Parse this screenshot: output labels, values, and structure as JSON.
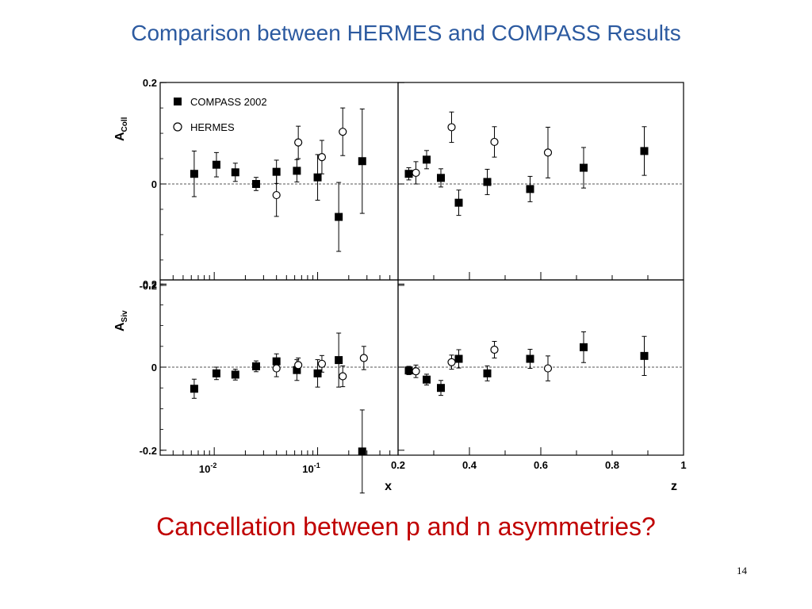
{
  "slide": {
    "title": "Comparison between HERMES and COMPASS Results",
    "subtitle": "Cancellation between p and n asymmetries?",
    "page_number": "14"
  },
  "colors": {
    "title": "#2c5aa0",
    "subtitle": "#c00000",
    "axis": "#000000",
    "zero_line": "#555555"
  },
  "chart_data": [
    {
      "panel": "top-left",
      "type": "scatter",
      "xscale": "log",
      "xlim": [
        0.003,
        0.6
      ],
      "ylim": [
        -0.2,
        0.2
      ],
      "ylabel": "A",
      "ylabel_sub": "Coll",
      "yticks": [
        "0.2",
        "0",
        "-0.2"
      ],
      "legend": [
        "COMPASS 2002",
        "HERMES"
      ],
      "series": [
        {
          "name": "COMPASS 2002",
          "marker": "square-filled",
          "points": [
            {
              "x": 0.0064,
              "y": 0.02,
              "err": 0.045
            },
            {
              "x": 0.0105,
              "y": 0.038,
              "err": 0.024
            },
            {
              "x": 0.016,
              "y": 0.023,
              "err": 0.018
            },
            {
              "x": 0.0254,
              "y": 0.0,
              "err": 0.013
            },
            {
              "x": 0.04,
              "y": 0.024,
              "err": 0.023
            },
            {
              "x": 0.063,
              "y": 0.026,
              "err": 0.022
            },
            {
              "x": 0.1,
              "y": 0.013,
              "err": 0.045
            },
            {
              "x": 0.16,
              "y": -0.065,
              "err": 0.068
            },
            {
              "x": 0.27,
              "y": 0.045,
              "err": 0.103
            }
          ]
        },
        {
          "name": "HERMES",
          "marker": "circle-open",
          "points": [
            {
              "x": 0.04,
              "y": -0.022,
              "err": 0.042
            },
            {
              "x": 0.065,
              "y": 0.082,
              "err": 0.032
            },
            {
              "x": 0.11,
              "y": 0.053,
              "err": 0.033
            },
            {
              "x": 0.175,
              "y": 0.103,
              "err": 0.047
            }
          ]
        }
      ]
    },
    {
      "panel": "top-right",
      "type": "scatter",
      "xlim": [
        0.2,
        1.0
      ],
      "ylim": [
        -0.2,
        0.2
      ],
      "series": [
        {
          "name": "COMPASS 2002",
          "marker": "square-filled",
          "points": [
            {
              "x": 0.23,
              "y": 0.02,
              "err": 0.012
            },
            {
              "x": 0.28,
              "y": 0.048,
              "err": 0.018
            },
            {
              "x": 0.32,
              "y": 0.012,
              "err": 0.018
            },
            {
              "x": 0.37,
              "y": -0.037,
              "err": 0.025
            },
            {
              "x": 0.45,
              "y": 0.004,
              "err": 0.025
            },
            {
              "x": 0.57,
              "y": -0.01,
              "err": 0.025
            },
            {
              "x": 0.72,
              "y": 0.032,
              "err": 0.04
            },
            {
              "x": 0.89,
              "y": 0.065,
              "err": 0.048
            }
          ]
        },
        {
          "name": "HERMES",
          "marker": "circle-open",
          "points": [
            {
              "x": 0.25,
              "y": 0.022,
              "err": 0.022
            },
            {
              "x": 0.35,
              "y": 0.112,
              "err": 0.03
            },
            {
              "x": 0.47,
              "y": 0.083,
              "err": 0.03
            },
            {
              "x": 0.62,
              "y": 0.062,
              "err": 0.05
            }
          ]
        }
      ]
    },
    {
      "panel": "bottom-left",
      "type": "scatter",
      "xscale": "log",
      "xlim": [
        0.003,
        0.6
      ],
      "ylim": [
        -0.21,
        0.21
      ],
      "ylabel": "A",
      "ylabel_sub": "Siv",
      "xlabel": "x",
      "yticks": [
        "0.2",
        "0",
        "-0.2"
      ],
      "xticks": [
        {
          "base": "10",
          "exp": "-2",
          "value": 0.01
        },
        {
          "base": "10",
          "exp": "-1",
          "value": 0.1
        }
      ],
      "series": [
        {
          "name": "COMPASS 2002",
          "marker": "square-filled",
          "points": [
            {
              "x": 0.0064,
              "y": -0.052,
              "err": 0.023
            },
            {
              "x": 0.0105,
              "y": -0.015,
              "err": 0.015
            },
            {
              "x": 0.016,
              "y": -0.018,
              "err": 0.013
            },
            {
              "x": 0.0254,
              "y": 0.002,
              "err": 0.013
            },
            {
              "x": 0.04,
              "y": 0.014,
              "err": 0.018
            },
            {
              "x": 0.063,
              "y": -0.007,
              "err": 0.025
            },
            {
              "x": 0.1,
              "y": -0.015,
              "err": 0.033
            },
            {
              "x": 0.16,
              "y": 0.017,
              "err": 0.065
            },
            {
              "x": 0.27,
              "y": -0.203,
              "err": 0.1
            }
          ]
        },
        {
          "name": "HERMES",
          "marker": "circle-open",
          "points": [
            {
              "x": 0.04,
              "y": -0.003,
              "err": 0.02
            },
            {
              "x": 0.065,
              "y": 0.005,
              "err": 0.017
            },
            {
              "x": 0.11,
              "y": 0.008,
              "err": 0.02
            },
            {
              "x": 0.175,
              "y": -0.022,
              "err": 0.025
            },
            {
              "x": 0.28,
              "y": 0.022,
              "err": 0.028
            }
          ]
        }
      ]
    },
    {
      "panel": "bottom-right",
      "type": "scatter",
      "xlim": [
        0.2,
        1.0
      ],
      "ylim": [
        -0.21,
        0.21
      ],
      "xlabel": "z",
      "xticks": [
        "0.2",
        "0.4",
        "0.6",
        "0.8",
        "1"
      ],
      "series": [
        {
          "name": "COMPASS 2002",
          "marker": "square-filled",
          "points": [
            {
              "x": 0.23,
              "y": -0.008,
              "err": 0.01
            },
            {
              "x": 0.28,
              "y": -0.03,
              "err": 0.013
            },
            {
              "x": 0.32,
              "y": -0.05,
              "err": 0.018
            },
            {
              "x": 0.37,
              "y": 0.02,
              "err": 0.022
            },
            {
              "x": 0.45,
              "y": -0.015,
              "err": 0.018
            },
            {
              "x": 0.57,
              "y": 0.02,
              "err": 0.023
            },
            {
              "x": 0.72,
              "y": 0.048,
              "err": 0.037
            },
            {
              "x": 0.89,
              "y": 0.027,
              "err": 0.047
            }
          ]
        },
        {
          "name": "HERMES",
          "marker": "circle-open",
          "points": [
            {
              "x": 0.25,
              "y": -0.01,
              "err": 0.015
            },
            {
              "x": 0.35,
              "y": 0.012,
              "err": 0.017
            },
            {
              "x": 0.47,
              "y": 0.042,
              "err": 0.02
            },
            {
              "x": 0.62,
              "y": -0.003,
              "err": 0.03
            }
          ]
        }
      ]
    }
  ]
}
